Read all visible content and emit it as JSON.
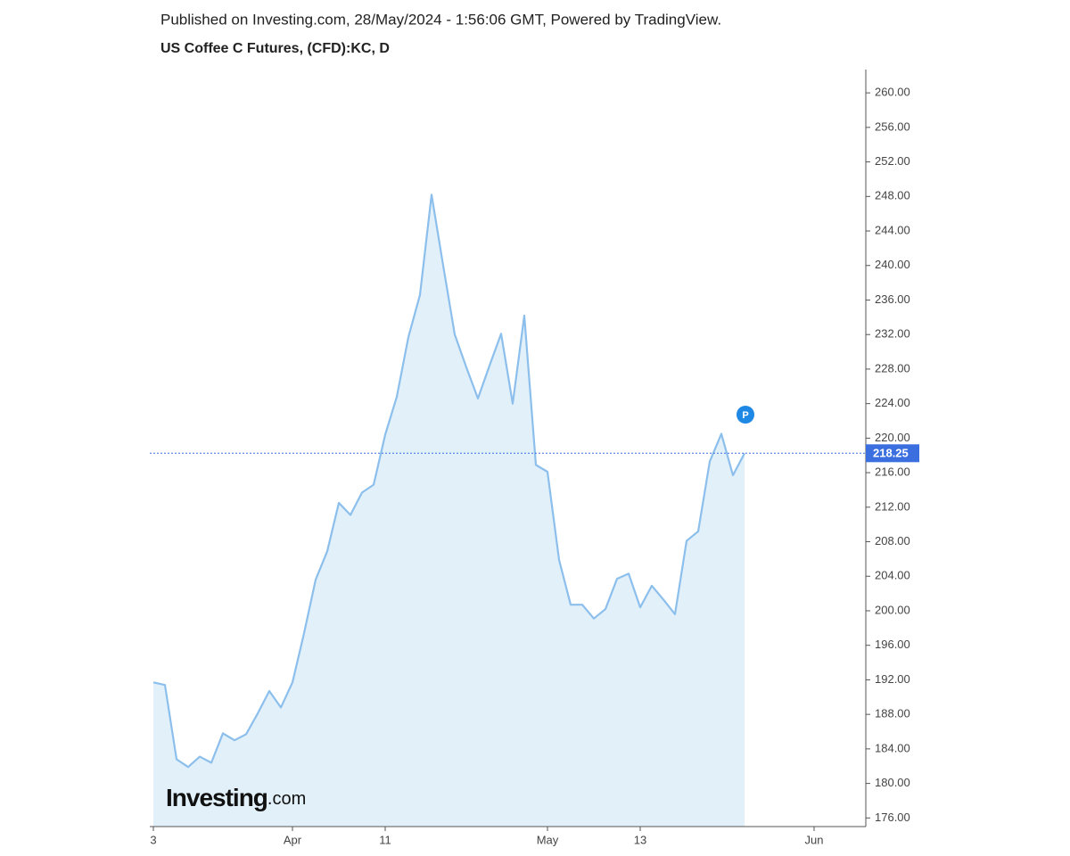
{
  "chart_data": {
    "type": "line",
    "title": "Published on Investing.com, 28/May/2024 - 1:56:06 GMT, Powered by TradingView.",
    "subtitle": "US Coffee C Futures, (CFD):KC, D",
    "categories": [
      "3",
      null,
      null,
      null,
      null,
      null,
      null,
      null,
      null,
      null,
      null,
      null,
      "Apr",
      null,
      null,
      null,
      null,
      null,
      null,
      null,
      "11",
      null,
      null,
      null,
      null,
      null,
      null,
      null,
      null,
      null,
      null,
      null,
      null,
      null,
      "May",
      null,
      null,
      null,
      null,
      null,
      null,
      null,
      "13",
      null,
      null,
      null,
      null,
      null,
      null,
      null,
      null,
      null,
      null,
      null,
      null,
      null,
      null,
      "Jun",
      null,
      null,
      null,
      null
    ],
    "series": [
      {
        "name": "KC",
        "color": "#8cbfec",
        "fill": "#e2f0fa",
        "values": [
          191.7,
          191.4,
          182.8,
          181.9,
          183.1,
          182.4,
          185.8,
          185.0,
          185.7,
          188.1,
          190.7,
          188.8,
          191.7,
          197.4,
          203.6,
          206.9,
          212.5,
          211.1,
          213.7,
          214.6,
          220.4,
          224.8,
          231.7,
          236.6,
          248.2,
          240.0,
          232.0,
          228.2,
          224.6,
          228.4,
          232.1,
          224.0,
          234.2,
          216.9,
          216.1,
          205.9,
          200.7,
          200.7,
          199.1,
          200.2,
          203.7,
          204.3,
          200.4,
          202.9,
          201.3,
          199.6,
          208.1,
          209.2,
          217.3,
          220.5,
          215.7,
          218.25,
          null,
          null,
          null,
          null,
          null,
          null,
          null,
          null,
          null,
          null
        ]
      }
    ],
    "last_price": 218.25,
    "annotation": "P",
    "ylim": [
      175,
      262.7
    ],
    "yticks": [
      {
        "value": 176,
        "label": "176.00"
      },
      {
        "value": 180,
        "label": "180.00"
      },
      {
        "value": 184,
        "label": "184.00"
      },
      {
        "value": 188,
        "label": "188.00"
      },
      {
        "value": 192,
        "label": "192.00"
      },
      {
        "value": 196,
        "label": "196.00"
      },
      {
        "value": 200,
        "label": "200.00"
      },
      {
        "value": 204,
        "label": "204.00"
      },
      {
        "value": 208,
        "label": "208.00"
      },
      {
        "value": 212,
        "label": "212.00"
      },
      {
        "value": 216,
        "label": "216.00"
      },
      {
        "value": 220,
        "label": "220.00"
      },
      {
        "value": 224,
        "label": "224.00"
      },
      {
        "value": 228,
        "label": "228.00"
      },
      {
        "value": 232,
        "label": "232.00"
      },
      {
        "value": 236,
        "label": "236.00"
      },
      {
        "value": 240,
        "label": "240.00"
      },
      {
        "value": 244,
        "label": "244.00"
      },
      {
        "value": 248,
        "label": "248.00"
      },
      {
        "value": 252,
        "label": "252.00"
      },
      {
        "value": 256,
        "label": "256.00"
      },
      {
        "value": 260,
        "label": "260.00"
      }
    ],
    "logo": {
      "brand": "Investing",
      "suffix": ".com"
    },
    "accent": "#3b6fe0"
  }
}
